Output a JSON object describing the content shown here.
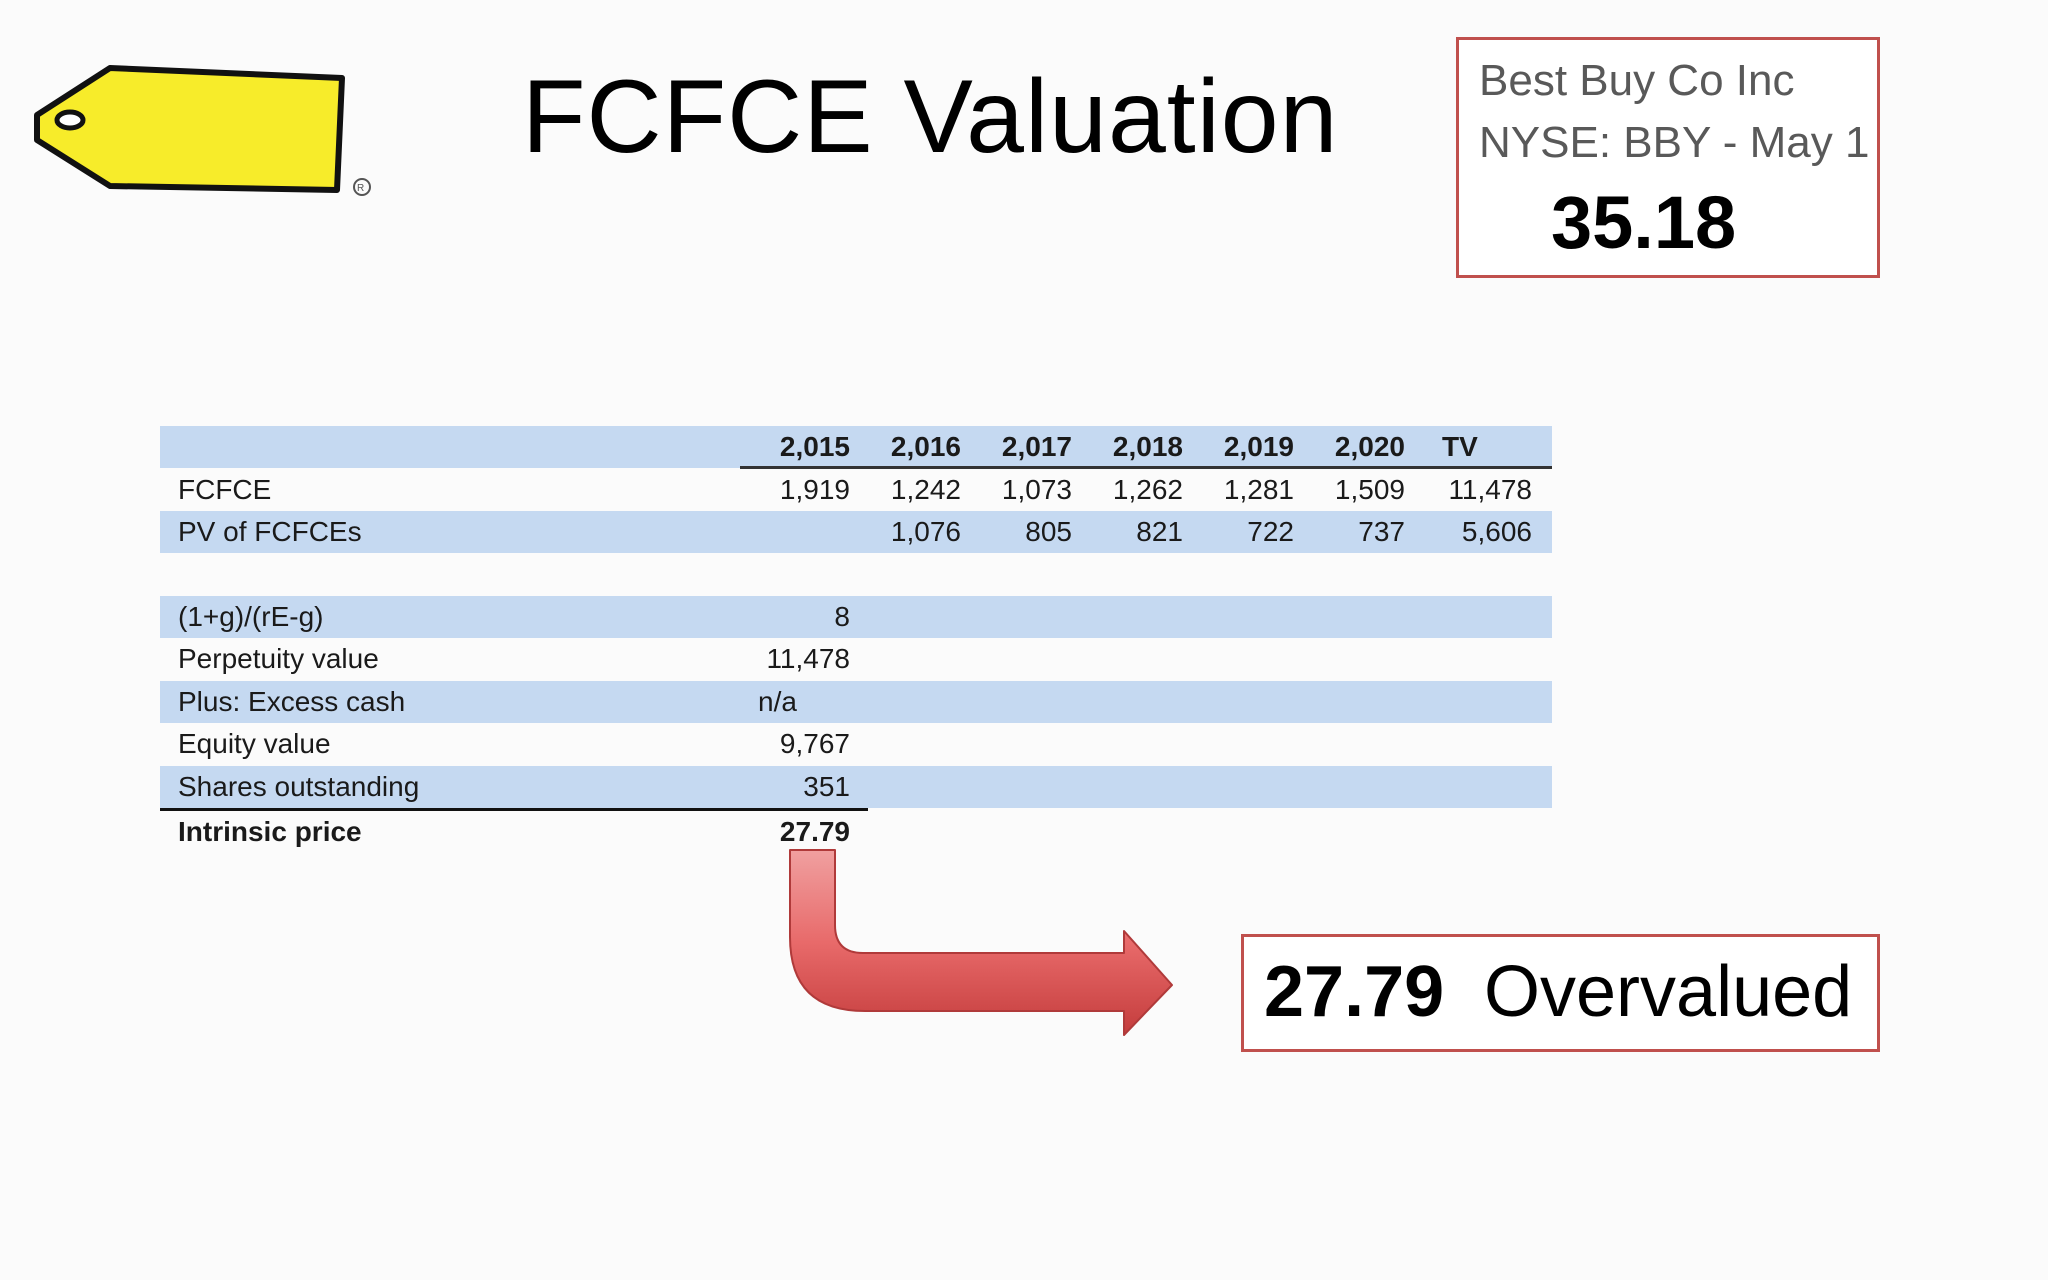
{
  "title": "FCFCE Valuation",
  "quote": {
    "company": "Best Buy Co Inc",
    "ticker_date": "NYSE: BBY - May 1",
    "price": "35.18"
  },
  "table": {
    "years": [
      "2,015",
      "2,016",
      "2,017",
      "2,018",
      "2,019",
      "2,020",
      "TV"
    ],
    "fcfce": {
      "label": "FCFCE",
      "values": [
        "1,919",
        "1,242",
        "1,073",
        "1,262",
        "1,281",
        "1,509",
        "11,478"
      ]
    },
    "pv": {
      "label": "PV of FCFCEs",
      "values": [
        "",
        "1,076",
        "805",
        "821",
        "722",
        "737",
        "5,606"
      ]
    },
    "summary": [
      {
        "label": "(1+g)/(rE-g)",
        "value": "8"
      },
      {
        "label": "Perpetuity value",
        "value": "11,478"
      },
      {
        "label": "Plus: Excess cash",
        "value": "n/a"
      },
      {
        "label": "Equity value",
        "value": "9,767"
      },
      {
        "label": "Shares outstanding",
        "value": "351"
      },
      {
        "label": "Intrinsic price",
        "value": "27.79"
      }
    ]
  },
  "result": {
    "value": "27.79",
    "label": "Overvalued"
  },
  "colors": {
    "accent_border": "#c0504d",
    "row_shade": "#c5d9f1",
    "tag_yellow": "#f7ec2a",
    "arrow_red": "#d9484a"
  },
  "icons": {
    "logo": "price-tag-logo-icon",
    "arrow": "curved-arrow-icon"
  }
}
